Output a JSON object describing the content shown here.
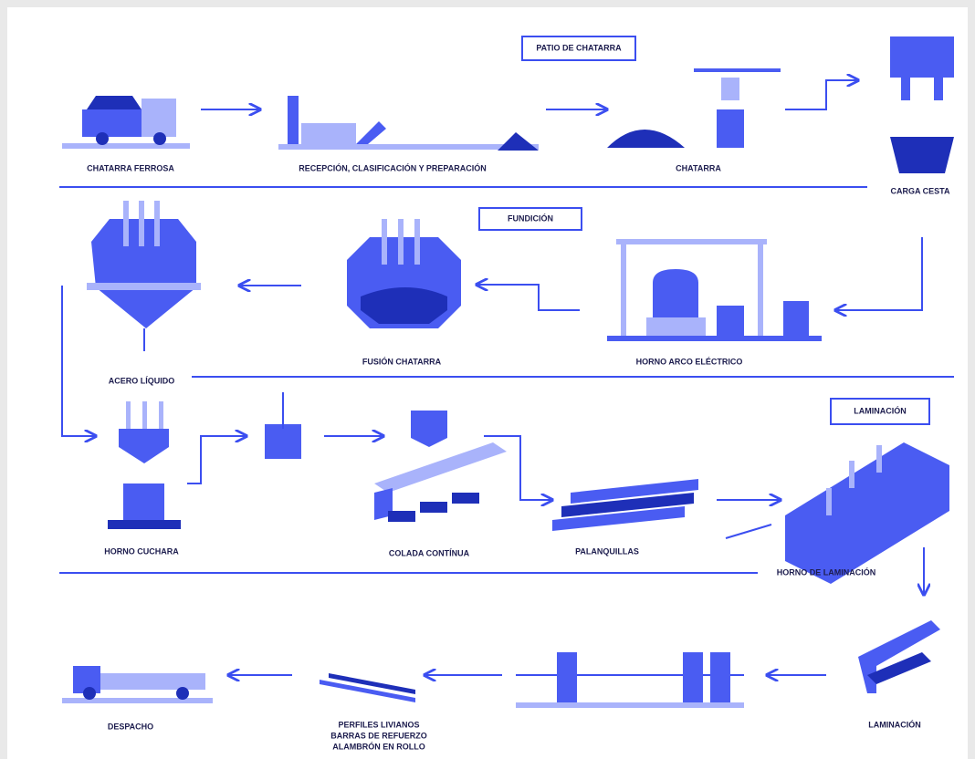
{
  "sections": [
    "PATIO DE CHATARRA",
    "FUNDICIÓN",
    "LAMINACIÓN"
  ],
  "nodes": [
    {
      "label": "CHATARRA FERROSA"
    },
    {
      "label": "RECEPCIÓN, CLASIFICACIÓN Y PREPARACIÓN"
    },
    {
      "label": "CHATARRA"
    },
    {
      "label": "CARGA CESTA"
    },
    {
      "label": "ACERO LÍQUIDO"
    },
    {
      "label": "FUSIÓN CHATARRA"
    },
    {
      "label": "HORNO ARCO ELÉCTRICO"
    },
    {
      "label": "HORNO CUCHARA"
    },
    {
      "label": "COLADA CONTÍNUA"
    },
    {
      "label": "PALANQUILLAS"
    },
    {
      "label": "HORNO DE LAMINACIÓN"
    },
    {
      "label": "LAMINACIÓN"
    },
    {
      "label": "DESPACHO"
    },
    {
      "lines": [
        "PERFILES LIVIANOS",
        "BARRAS DE REFUERZO",
        "ALAMBRÓN EN ROLLO"
      ]
    }
  ]
}
